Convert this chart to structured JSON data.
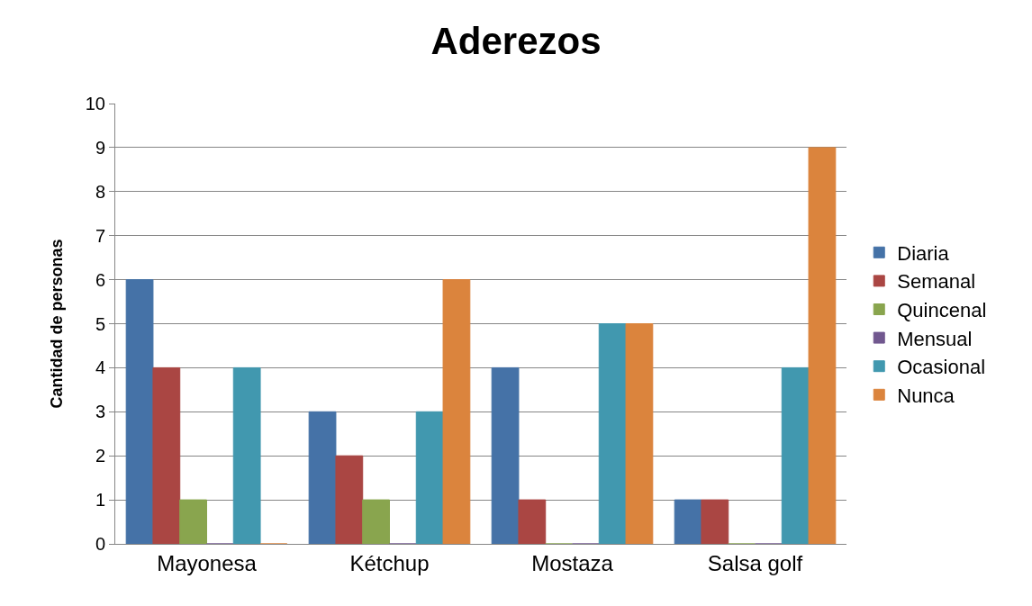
{
  "chart_data": {
    "type": "bar",
    "title": "Aderezos",
    "ylabel": "Cantidad de personas",
    "categories": [
      "Mayonesa",
      "Kétchup",
      "Mostaza",
      "Salsa golf"
    ],
    "series": [
      {
        "name": "Diaria",
        "color": "#4572a7",
        "values": [
          6,
          3,
          4,
          1
        ]
      },
      {
        "name": "Semanal",
        "color": "#aa4643",
        "values": [
          4,
          2,
          1,
          1
        ]
      },
      {
        "name": "Quincenal",
        "color": "#89a54e",
        "values": [
          1,
          1,
          0,
          0
        ]
      },
      {
        "name": "Mensual",
        "color": "#71588f",
        "values": [
          0,
          0,
          0,
          0
        ]
      },
      {
        "name": "Ocasional",
        "color": "#4198af",
        "values": [
          4,
          3,
          5,
          4
        ]
      },
      {
        "name": "Nunca",
        "color": "#db843d",
        "values": [
          0,
          6,
          5,
          9
        ]
      }
    ],
    "ylim": [
      0,
      10
    ],
    "yticks": [
      0,
      1,
      2,
      3,
      4,
      5,
      6,
      7,
      8,
      9,
      10
    ],
    "grid": "y",
    "legend": "right"
  }
}
